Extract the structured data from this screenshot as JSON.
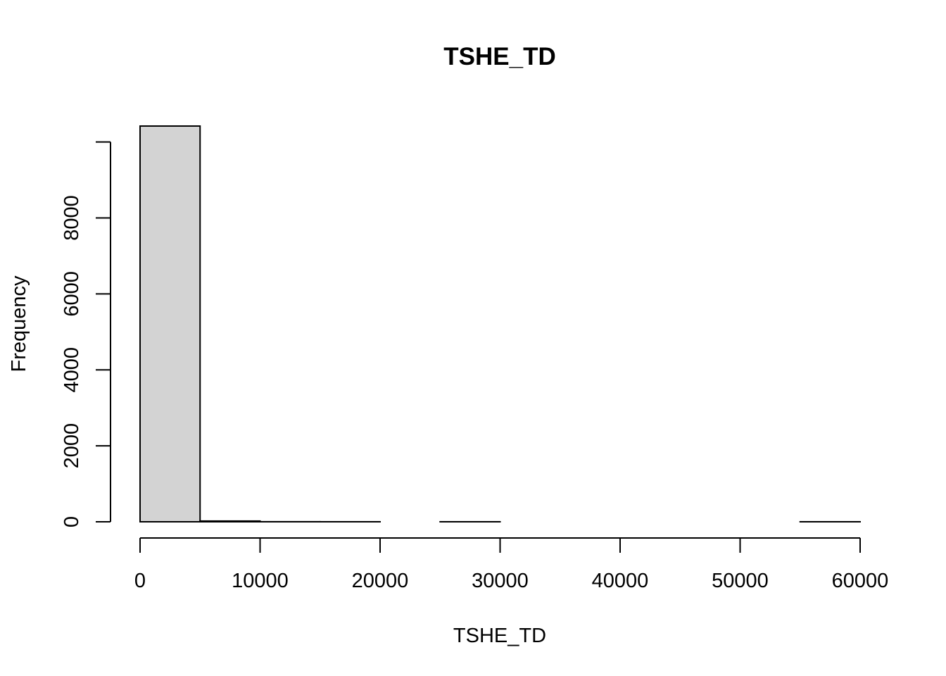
{
  "chart_data": {
    "type": "bar",
    "subtype": "histogram",
    "title": "TSHE_TD",
    "xlabel": "TSHE_TD",
    "ylabel": "Frequency",
    "bins": [
      {
        "from": 0,
        "to": 5000,
        "count": 10420
      },
      {
        "from": 5000,
        "to": 10000,
        "count": 20
      },
      {
        "from": 10000,
        "to": 15000,
        "count": 2
      },
      {
        "from": 15000,
        "to": 20000,
        "count": 1
      },
      {
        "from": 20000,
        "to": 25000,
        "count": 0
      },
      {
        "from": 25000,
        "to": 30000,
        "count": 1
      },
      {
        "from": 30000,
        "to": 35000,
        "count": 0
      },
      {
        "from": 35000,
        "to": 40000,
        "count": 0
      },
      {
        "from": 40000,
        "to": 45000,
        "count": 0
      },
      {
        "from": 45000,
        "to": 50000,
        "count": 0
      },
      {
        "from": 50000,
        "to": 55000,
        "count": 0
      },
      {
        "from": 55000,
        "to": 60000,
        "count": 1
      }
    ],
    "x_ticks": [
      0,
      10000,
      20000,
      30000,
      40000,
      50000,
      60000
    ],
    "x_tick_labels": [
      "0",
      "10000",
      "20000",
      "30000",
      "40000",
      "50000",
      "60000"
    ],
    "y_ticks": [
      0,
      2000,
      4000,
      6000,
      8000
    ],
    "y_tick_labels": [
      "0",
      "2000",
      "4000",
      "6000",
      "8000"
    ],
    "xlim": [
      0,
      60000
    ],
    "ylim": [
      0,
      10420
    ],
    "y_axis_max_line": 10000,
    "bar_fill": "#d3d3d3",
    "bar_stroke": "#000000",
    "grid": false,
    "legend": "none"
  }
}
